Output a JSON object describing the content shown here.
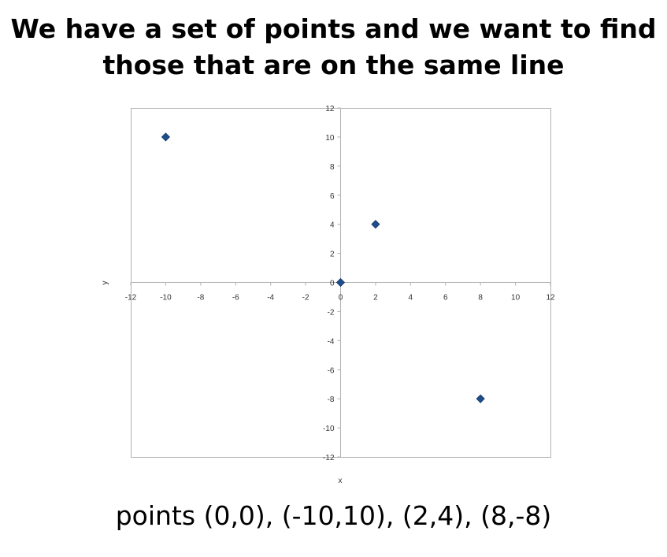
{
  "slide": {
    "title_line1": "We have a set of points and we want to find",
    "title_line2": "those that are on the same line",
    "caption": "points (0,0), (-10,10), (2,4), (8,-8)"
  },
  "chart_data": {
    "type": "scatter",
    "title": "",
    "xlabel": "x",
    "ylabel": "y",
    "xlim": [
      -12,
      12
    ],
    "ylim": [
      -12,
      12
    ],
    "x_ticks": [
      -12,
      -10,
      -8,
      -6,
      -4,
      -2,
      0,
      2,
      4,
      6,
      8,
      10,
      12
    ],
    "y_ticks": [
      -12,
      -10,
      -8,
      -6,
      -4,
      -2,
      0,
      2,
      4,
      6,
      8,
      10,
      12
    ],
    "grid": false,
    "legend": "none",
    "marker": "diamond",
    "marker_color": "#1f4e8c",
    "series": [
      {
        "points": [
          {
            "x": -10,
            "y": 10
          },
          {
            "x": 0,
            "y": 0
          },
          {
            "x": 2,
            "y": 4
          },
          {
            "x": 8,
            "y": -8
          }
        ]
      }
    ]
  }
}
